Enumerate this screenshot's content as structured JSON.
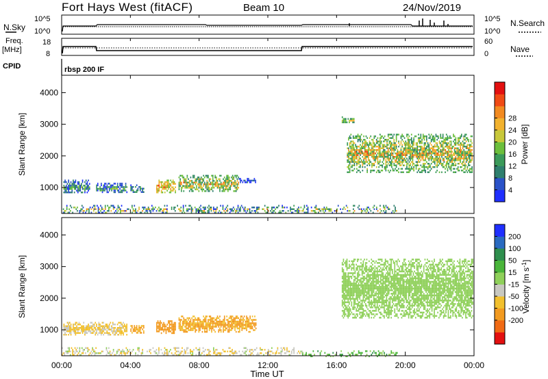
{
  "header": {
    "title": "Fort Hays West (fitACF)",
    "beam": "Beam 10",
    "date": "24/Nov/2019"
  },
  "noise_panel": {
    "left_label": "N.Sky",
    "right_label": "N.Search",
    "left_ticks": [
      "10^5",
      "10^0"
    ],
    "right_ticks": [
      "10^5",
      "10^0"
    ]
  },
  "freq_panel": {
    "left_label_1": "Freq.",
    "left_label_2": "[MHz]",
    "right_label": "Nave",
    "left_ticks": [
      "18",
      "8"
    ],
    "right_ticks": [
      "60",
      "0"
    ]
  },
  "cpid": {
    "label": "CPID",
    "value": "rbsp 200 IF"
  },
  "x_axis": {
    "label": "Time UT",
    "ticks": [
      "00:00",
      "04:00",
      "08:00",
      "12:00",
      "16:00",
      "20:00",
      "00:00"
    ]
  },
  "chart_data": [
    {
      "type": "heatmap",
      "name": "power",
      "ylabel": "Slant Range [km]",
      "yticks": [
        1000,
        2000,
        3000,
        4000
      ],
      "ylim": [
        180,
        4550
      ],
      "xlim": [
        0,
        24
      ],
      "colorbar": {
        "label": "Power [dB]",
        "ticks": [
          "4",
          "8",
          "12",
          "16",
          "20",
          "24",
          "28"
        ],
        "colors": [
          "#1f2fff",
          "#2a52c8",
          "#2f7f6e",
          "#3b9a5a",
          "#6cbf3c",
          "#c8c83a",
          "#f2b22e",
          "#f28a20",
          "#f04a14",
          "#e31010"
        ]
      },
      "regions": [
        {
          "t0": 0.1,
          "t1": 1.6,
          "r0": 820,
          "r1": 1250,
          "level": "low-mid"
        },
        {
          "t0": 2.0,
          "t1": 3.8,
          "r0": 850,
          "r1": 1150,
          "level": "low-mid"
        },
        {
          "t0": 4.0,
          "t1": 4.8,
          "r0": 850,
          "r1": 1100,
          "level": "low-mid"
        },
        {
          "t0": 5.5,
          "t1": 6.6,
          "r0": 850,
          "r1": 1250,
          "level": "high"
        },
        {
          "t0": 6.8,
          "t1": 10.3,
          "r0": 900,
          "r1": 1400,
          "level": "mid-high"
        },
        {
          "t0": 10.3,
          "t1": 11.3,
          "r0": 1150,
          "r1": 1300,
          "level": "low"
        },
        {
          "t0": 16.3,
          "t1": 17.0,
          "r0": 3050,
          "r1": 3250,
          "level": "mid"
        },
        {
          "t0": 16.6,
          "t1": 23.9,
          "r0": 1500,
          "r1": 2700,
          "level": "mid-high"
        },
        {
          "t0": 0.0,
          "t1": 19.5,
          "r0": 180,
          "r1": 450,
          "level": "mixed"
        }
      ]
    },
    {
      "type": "heatmap",
      "name": "velocity",
      "ylabel": "Slant Range [km]",
      "yticks": [
        1000,
        2000,
        3000,
        4000
      ],
      "ylim": [
        180,
        4550
      ],
      "xlim": [
        0,
        24
      ],
      "colorbar": {
        "label": "Velocity [m s-1]",
        "ticks": [
          "200",
          "100",
          "50",
          "15",
          "-15",
          "-50",
          "-100",
          "-200"
        ],
        "colors": [
          "#1f2fff",
          "#2a6ac0",
          "#2f8f4e",
          "#4ab53a",
          "#8fd05a",
          "#c8c8c0",
          "#f2c02e",
          "#f29a20",
          "#f06a14",
          "#e31010"
        ]
      },
      "regions": [
        {
          "t0": 0.1,
          "t1": 3.8,
          "r0": 850,
          "r1": 1250,
          "velocity": -60
        },
        {
          "t0": 4.0,
          "t1": 4.8,
          "r0": 900,
          "r1": 1150,
          "velocity": -110
        },
        {
          "t0": 5.5,
          "t1": 6.6,
          "r0": 900,
          "r1": 1300,
          "velocity": -150
        },
        {
          "t0": 6.8,
          "t1": 11.3,
          "r0": 950,
          "r1": 1450,
          "velocity": -110
        },
        {
          "t0": 16.3,
          "t1": 23.9,
          "r0": 1400,
          "r1": 3250,
          "velocity": 0
        },
        {
          "t0": 0.0,
          "t1": 14.0,
          "r0": 180,
          "r1": 450,
          "velocity": -40
        },
        {
          "t0": 14.0,
          "t1": 19.5,
          "r0": 180,
          "r1": 350,
          "velocity": 20
        }
      ]
    }
  ]
}
